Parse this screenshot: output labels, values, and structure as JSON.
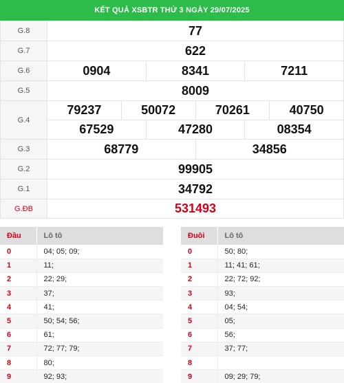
{
  "title": "KẾT QUẢ XSBTR THỨ 3 NGÀY 29/07/2025",
  "prizes": [
    {
      "label": "G.8",
      "numbers": [
        "77"
      ]
    },
    {
      "label": "G.7",
      "numbers": [
        "622"
      ]
    },
    {
      "label": "G.6",
      "numbers": [
        "0904",
        "8341",
        "7211"
      ]
    },
    {
      "label": "G.5",
      "numbers": [
        "8009"
      ]
    },
    {
      "label": "G.4",
      "row1": [
        "79237",
        "50072",
        "70261",
        "40750"
      ],
      "row2": [
        "67529",
        "47280",
        "08354"
      ]
    },
    {
      "label": "G.3",
      "numbers": [
        "68779",
        "34856"
      ]
    },
    {
      "label": "G.2",
      "numbers": [
        "99905"
      ]
    },
    {
      "label": "G.1",
      "numbers": [
        "34792"
      ]
    },
    {
      "label": "G.ĐB",
      "numbers": [
        "531493"
      ]
    }
  ],
  "dau": {
    "header_key": "Đầu",
    "header_value": "Lô tô",
    "rows": [
      {
        "k": "0",
        "v": "04; 05; 09;"
      },
      {
        "k": "1",
        "v": "11;"
      },
      {
        "k": "2",
        "v": "22; 29;"
      },
      {
        "k": "3",
        "v": "37;"
      },
      {
        "k": "4",
        "v": "41;"
      },
      {
        "k": "5",
        "v": "50; 54; 56;"
      },
      {
        "k": "6",
        "v": "61;"
      },
      {
        "k": "7",
        "v": "72; 77; 79;"
      },
      {
        "k": "8",
        "v": "80;"
      },
      {
        "k": "9",
        "v": "92; 93;"
      }
    ]
  },
  "duoi": {
    "header_key": "Đuôi",
    "header_value": "Lô tô",
    "rows": [
      {
        "k": "0",
        "v": "50; 80;"
      },
      {
        "k": "1",
        "v": "11; 41; 61;"
      },
      {
        "k": "2",
        "v": "22; 72; 92;"
      },
      {
        "k": "3",
        "v": "93;"
      },
      {
        "k": "4",
        "v": "04; 54;"
      },
      {
        "k": "5",
        "v": "05;"
      },
      {
        "k": "6",
        "v": "56;"
      },
      {
        "k": "7",
        "v": "37; 77;"
      },
      {
        "k": "8",
        "v": ""
      },
      {
        "k": "9",
        "v": "09; 29; 79;"
      }
    ]
  },
  "colors": {
    "header_green": "#2dbb49",
    "special_red": "#d0021b"
  }
}
